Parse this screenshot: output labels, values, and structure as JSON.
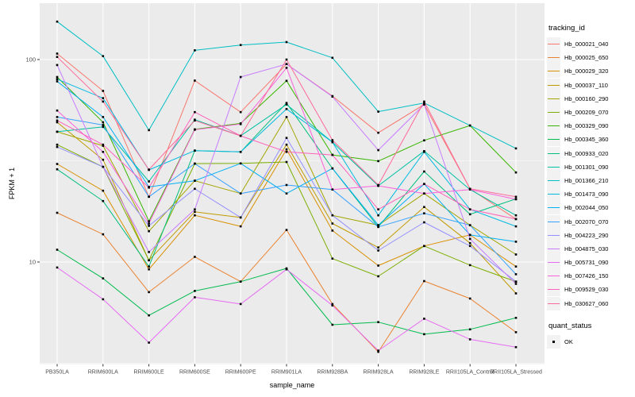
{
  "chart_data": {
    "type": "line",
    "title": "",
    "xlabel": "sample_name",
    "ylabel": "FPKM + 1",
    "y_scale": "log10",
    "y_ticks": [
      100,
      10
    ],
    "y_minor_ticks": [
      31.62,
      3.162
    ],
    "ylim": [
      3.2,
      190
    ],
    "grid": true,
    "legend_position": "right",
    "categories": [
      "PB350LA",
      "RRIM600LA",
      "RRIM600LE",
      "RRIM600SE",
      "RRIM600PE",
      "RRIM901LA",
      "RRIM928BA",
      "RRIM928LA",
      "RRIM928LE",
      "RRII105LA_Control",
      "RRII105LA_Stressed"
    ],
    "series": [
      {
        "name": "Hb_000021_040",
        "color": "#F8766D",
        "values": [
          107,
          70,
          21,
          78.7,
          55,
          95,
          66,
          43.5,
          60,
          23,
          16.3
        ]
      },
      {
        "name": "Hb_000025_650",
        "color": "#EA8331",
        "values": [
          17.5,
          13.7,
          7.1,
          10.6,
          8.0,
          14.4,
          6.2,
          3.6,
          8.05,
          6.6,
          4.5
        ]
      },
      {
        "name": "Hb_000029_320",
        "color": "#D89000",
        "values": [
          30.5,
          22.5,
          9.2,
          17.0,
          15.0,
          36,
          14.3,
          9.6,
          12.0,
          13.6,
          9.5
        ]
      },
      {
        "name": "Hb_000037_110",
        "color": "#C09B00",
        "values": [
          49,
          32,
          10.2,
          17.7,
          16.6,
          38,
          15.5,
          11.8,
          18.7,
          12.4,
          7.0
        ]
      },
      {
        "name": "Hb_000160_290",
        "color": "#A3A500",
        "values": [
          44,
          37.5,
          14.2,
          25.2,
          21.8,
          52,
          17.0,
          15.2,
          21.8,
          15.2,
          10.9
        ]
      },
      {
        "name": "Hb_000209_070",
        "color": "#7CAE00",
        "values": [
          38,
          29.5,
          10.2,
          30.6,
          30.7,
          31.2,
          10.4,
          8.5,
          12.0,
          9.65,
          8.0
        ]
      },
      {
        "name": "Hb_000329_090",
        "color": "#39B600",
        "values": [
          82,
          49,
          15.9,
          45.2,
          48.4,
          78.5,
          33.8,
          31.5,
          39.9,
          47.2,
          27.7
        ]
      },
      {
        "name": "Hb_000345_360",
        "color": "#00BB4E",
        "values": [
          11.5,
          8.3,
          5.45,
          7.2,
          8.0,
          9.3,
          4.9,
          5.05,
          4.4,
          4.65,
          5.3
        ]
      },
      {
        "name": "Hb_000933_020",
        "color": "#00BF7D",
        "values": [
          28.7,
          20.0,
          9.5,
          35.5,
          35,
          61,
          29.0,
          14.9,
          28.0,
          17.2,
          20.5
        ]
      },
      {
        "name": "Hb_001301_090",
        "color": "#00C1A3",
        "values": [
          44,
          46.5,
          25,
          50.5,
          42,
          60,
          39.1,
          23.8,
          35.3,
          22.8,
          17.0
        ]
      },
      {
        "name": "Hb_001366_210",
        "color": "#00BFC4",
        "values": [
          154,
          104,
          44.8,
          111,
          118,
          122,
          102,
          55.3,
          61,
          47.2,
          36.4
        ]
      },
      {
        "name": "Hb_001473_090",
        "color": "#00BAE0",
        "values": [
          80,
          64.5,
          28.5,
          35.5,
          35,
          57,
          39.1,
          17.0,
          35,
          18.2,
          15.0
        ]
      },
      {
        "name": "Hb_002044_050",
        "color": "#00B0F6",
        "values": [
          78,
          52,
          23.5,
          25.2,
          30.7,
          21.8,
          29.0,
          15.2,
          24.3,
          13.6,
          12.6
        ]
      },
      {
        "name": "Hb_002070_070",
        "color": "#35A2FF",
        "values": [
          52,
          47.5,
          21,
          30.6,
          21.8,
          24,
          22.8,
          14.9,
          17.4,
          15.2,
          8.7
        ]
      },
      {
        "name": "Hb_004223_290",
        "color": "#9590FF",
        "values": [
          37,
          29.5,
          15.1,
          23,
          16.6,
          41,
          17.0,
          11.4,
          15.7,
          12.0,
          8.0
        ]
      },
      {
        "name": "Hb_004875_030",
        "color": "#C77CFF",
        "values": [
          94,
          29.5,
          11.2,
          18.2,
          82,
          95,
          65.6,
          35.7,
          60,
          13,
          7.8
        ]
      },
      {
        "name": "Hb_005731_090",
        "color": "#E76BF3",
        "values": [
          9.4,
          6.55,
          4.0,
          6.7,
          6.2,
          9.2,
          6.1,
          3.65,
          5.25,
          4.15,
          3.8
        ]
      },
      {
        "name": "Hb_007426_150",
        "color": "#FA62DB",
        "values": [
          56,
          35,
          15.5,
          45,
          48,
          91,
          22.8,
          23.8,
          21.8,
          22.8,
          20.4
        ]
      },
      {
        "name": "Hb_009529_030",
        "color": "#FF62BC",
        "values": [
          50,
          38,
          23.3,
          55,
          42,
          35,
          33.8,
          18.2,
          24.3,
          18.2,
          16.3
        ]
      },
      {
        "name": "Hb_030627_060",
        "color": "#FF6A98",
        "values": [
          103,
          62,
          28.6,
          50,
          42,
          100,
          40,
          24,
          62,
          23,
          21
        ]
      }
    ],
    "points": {
      "shape": "square",
      "color": "#000000"
    }
  },
  "legend": {
    "color_title": "tracking_id",
    "shape_title": "quant_status",
    "shape_items": [
      {
        "label": "OK",
        "shape": "square",
        "color": "#000000"
      }
    ]
  },
  "panel": {
    "bg": "#EBEBEB",
    "grid_color": "#FFFFFF",
    "tick_color": "#333333",
    "axis_text_color": "#4D4D4D"
  }
}
